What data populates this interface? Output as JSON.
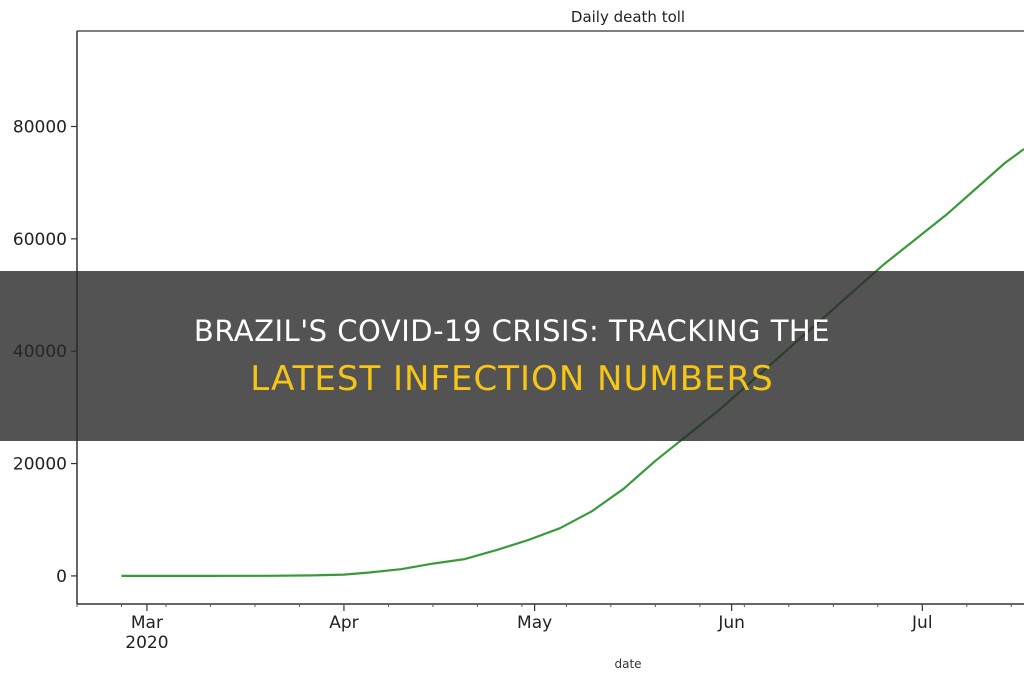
{
  "chart_data": {
    "type": "line",
    "title": "Daily death toll",
    "xlabel": "date",
    "ylabel": "",
    "ylim": [
      -5000,
      97000
    ],
    "xlim": [
      "2020-02-19",
      "2020-07-17"
    ],
    "yticks": [
      0,
      20000,
      40000,
      60000,
      80000
    ],
    "xticks": [
      {
        "date": "2020-03-01",
        "label": "Mar",
        "sublabel": "2020"
      },
      {
        "date": "2020-04-01",
        "label": "Apr",
        "sublabel": ""
      },
      {
        "date": "2020-05-01",
        "label": "May",
        "sublabel": ""
      },
      {
        "date": "2020-06-01",
        "label": "Jun",
        "sublabel": ""
      },
      {
        "date": "2020-07-01",
        "label": "Jul",
        "sublabel": ""
      }
    ],
    "grid": false,
    "color": "#3a9a3a",
    "series": [
      {
        "x": [
          "2020-02-26",
          "2020-03-10",
          "2020-03-20",
          "2020-03-27",
          "2020-04-01",
          "2020-04-05",
          "2020-04-10",
          "2020-04-15",
          "2020-04-20",
          "2020-04-25",
          "2020-04-30",
          "2020-05-05",
          "2020-05-10",
          "2020-05-15",
          "2020-05-20",
          "2020-05-25",
          "2020-05-30",
          "2020-06-05",
          "2020-06-10",
          "2020-06-15",
          "2020-06-20",
          "2020-06-25",
          "2020-06-30",
          "2020-07-05",
          "2020-07-10",
          "2020-07-14",
          "2020-07-17"
        ],
        "values": [
          0,
          0,
          20,
          100,
          240,
          600,
          1200,
          2200,
          3000,
          4600,
          6400,
          8500,
          11500,
          15500,
          20500,
          25000,
          29500,
          35500,
          40500,
          45500,
          50500,
          55500,
          60000,
          64500,
          69500,
          73500,
          76000
        ]
      }
    ]
  },
  "banner": {
    "line1": "BRAZIL'S COVID-19 CRISIS: TRACKING THE",
    "line2": "LATEST INFECTION NUMBERS"
  }
}
